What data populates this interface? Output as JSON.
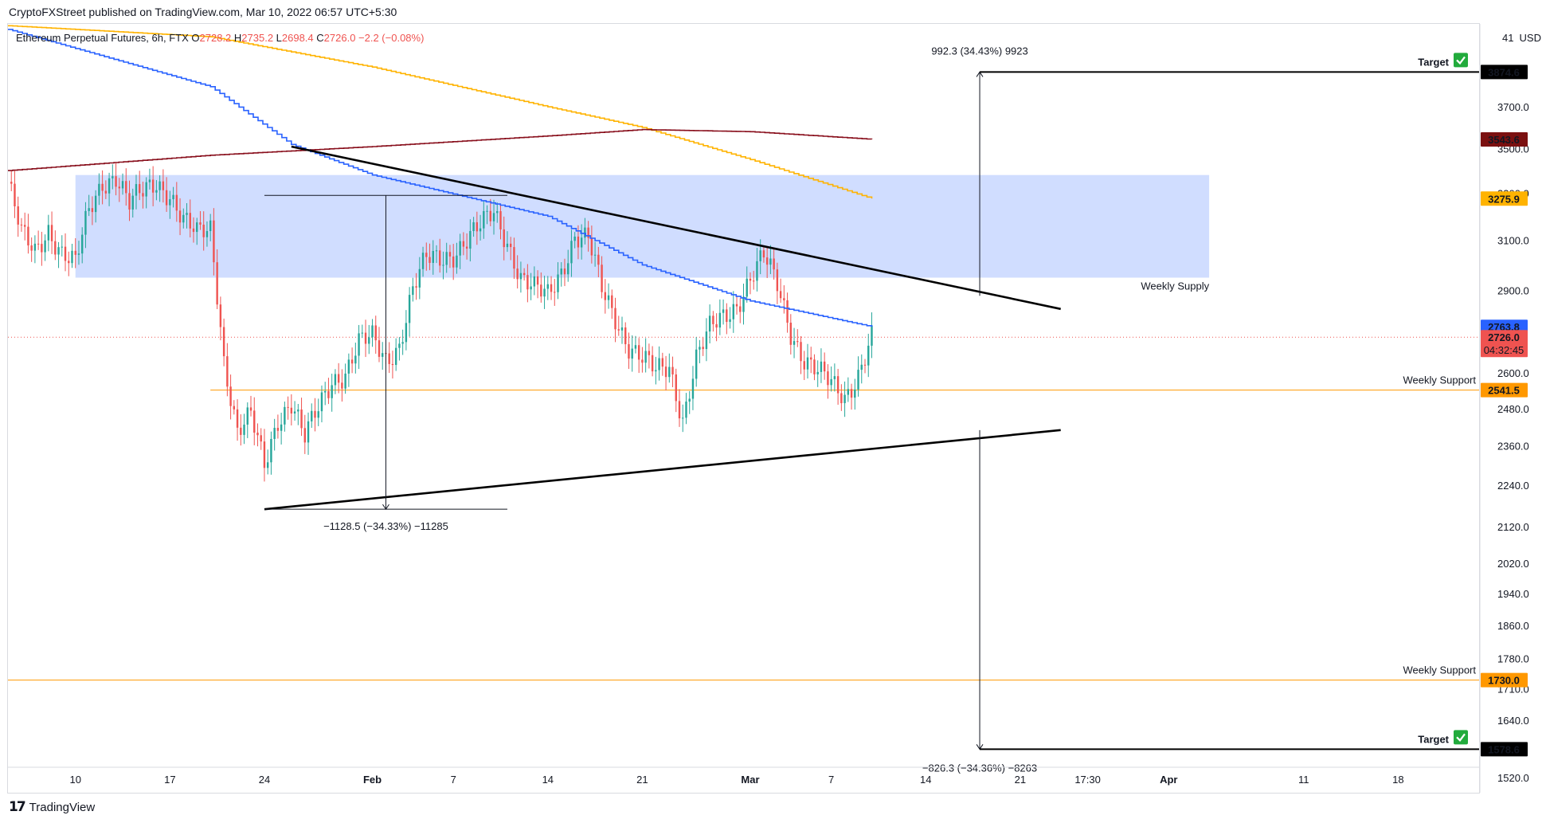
{
  "publisher": "CryptoFXStreet published on TradingView.com, Mar 10, 2022 06:57 UTC+5:30",
  "footer_brand": "TradingView",
  "legend": {
    "symbol": "Ethereum Perpetual Futures, 6h, FTX",
    "o_label": "O",
    "o": "2728.2",
    "h_label": "H",
    "h": "2735.2",
    "l_label": "L",
    "l": "2698.4",
    "c_label": "C",
    "c": "2726.0",
    "change": "−2.2 (−0.08%)"
  },
  "currency": "USD",
  "currency_prefix": "41",
  "colors": {
    "up": "#26a69a",
    "down": "#ef5350",
    "supply_zone": "#2962ff",
    "support": "#ff9800",
    "ma_blue": "#2962ff",
    "ma_yellow": "#ffb300",
    "ma_maroon": "#880e1b",
    "label_maroon": "#7b1010",
    "weekly_supply_text": "#9c27b0",
    "target_check": "#22ab3c"
  },
  "chart_data": {
    "type": "candlestick",
    "symbol": "Ethereum Perpetual Futures, 6h, FTX",
    "y_axis": {
      "scale": "log",
      "ticks": [
        1520.0,
        1640.0,
        1710.0,
        1780.0,
        1860.0,
        1940.0,
        2020.0,
        2120.0,
        2240.0,
        2360.0,
        2480.0,
        2600.0,
        2900.0,
        3100.0,
        3700.0
      ],
      "hidden_ticks_near_labels": [
        3300.0,
        3500.0
      ],
      "range": [
        1490,
        4130
      ]
    },
    "x_axis": {
      "ticks": [
        "10",
        "17",
        "24",
        "Feb",
        "7",
        "14",
        "21",
        "Mar",
        "7",
        "14",
        "21",
        "17:30",
        "Apr",
        "11",
        "18"
      ],
      "bold_ticks": [
        "Feb",
        "Mar",
        "Apr"
      ],
      "tick_dates": [
        "2022-01-10",
        "2022-01-17",
        "2022-01-24",
        "2022-02-01",
        "2022-02-07",
        "2022-02-14",
        "2022-02-21",
        "2022-03-01",
        "2022-03-07",
        "2022-03-14",
        "2022-03-21",
        "2022-03-26",
        "2022-04-01",
        "2022-04-11",
        "2022-04-18"
      ],
      "range": [
        "2022-01-05",
        "2022-04-24"
      ]
    },
    "candle_anchors": [
      [
        "2022-01-05",
        3350
      ],
      [
        "2022-01-06",
        3120
      ],
      [
        "2022-01-07",
        3050
      ],
      [
        "2022-01-08",
        3150
      ],
      [
        "2022-01-09",
        3050
      ],
      [
        "2022-01-10",
        3000
      ],
      [
        "2022-01-11",
        3220
      ],
      [
        "2022-01-12",
        3350
      ],
      [
        "2022-01-13",
        3380
      ],
      [
        "2022-01-14",
        3250
      ],
      [
        "2022-01-15",
        3300
      ],
      [
        "2022-01-16",
        3350
      ],
      [
        "2022-01-17",
        3300
      ],
      [
        "2022-01-18",
        3180
      ],
      [
        "2022-01-19",
        3120
      ],
      [
        "2022-01-20",
        3150
      ],
      [
        "2022-01-21",
        2650
      ],
      [
        "2022-01-22",
        2400
      ],
      [
        "2022-01-23",
        2450
      ],
      [
        "2022-01-24",
        2300
      ],
      [
        "2022-01-25",
        2450
      ],
      [
        "2022-01-26",
        2500
      ],
      [
        "2022-01-27",
        2380
      ],
      [
        "2022-01-28",
        2480
      ],
      [
        "2022-01-29",
        2580
      ],
      [
        "2022-01-30",
        2600
      ],
      [
        "2022-01-31",
        2700
      ],
      [
        "2022-02-01",
        2720
      ],
      [
        "2022-02-02",
        2650
      ],
      [
        "2022-02-03",
        2700
      ],
      [
        "2022-02-04",
        2900
      ],
      [
        "2022-02-05",
        3020
      ],
      [
        "2022-02-06",
        3030
      ],
      [
        "2022-02-07",
        3050
      ],
      [
        "2022-02-08",
        3100
      ],
      [
        "2022-02-09",
        3150
      ],
      [
        "2022-02-10",
        3220
      ],
      [
        "2022-02-11",
        3100
      ],
      [
        "2022-02-12",
        2950
      ],
      [
        "2022-02-13",
        2900
      ],
      [
        "2022-02-14",
        2880
      ],
      [
        "2022-02-15",
        2980
      ],
      [
        "2022-02-16",
        3120
      ],
      [
        "2022-02-17",
        3100
      ],
      [
        "2022-02-18",
        2900
      ],
      [
        "2022-02-19",
        2800
      ],
      [
        "2022-02-20",
        2700
      ],
      [
        "2022-02-21",
        2650
      ],
      [
        "2022-02-22",
        2600
      ],
      [
        "2022-02-23",
        2620
      ],
      [
        "2022-02-24",
        2450
      ],
      [
        "2022-02-25",
        2650
      ],
      [
        "2022-02-26",
        2750
      ],
      [
        "2022-02-27",
        2800
      ],
      [
        "2022-02-28",
        2850
      ],
      [
        "2022-03-01",
        2950
      ],
      [
        "2022-03-02",
        3030
      ],
      [
        "2022-03-03",
        2920
      ],
      [
        "2022-03-04",
        2750
      ],
      [
        "2022-03-05",
        2650
      ],
      [
        "2022-03-06",
        2600
      ],
      [
        "2022-03-07",
        2560
      ],
      [
        "2022-03-08",
        2520
      ],
      [
        "2022-03-09",
        2600
      ],
      [
        "2022-03-10",
        2726
      ]
    ],
    "moving_averages": [
      {
        "color": "ma_blue",
        "points": [
          [
            "2022-01-05",
            4100
          ],
          [
            "2022-01-20",
            3800
          ],
          [
            "2022-01-26",
            3520
          ],
          [
            "2022-02-01",
            3380
          ],
          [
            "2022-02-14",
            3200
          ],
          [
            "2022-02-21",
            3000
          ],
          [
            "2022-03-01",
            2860
          ],
          [
            "2022-03-10",
            2764
          ]
        ],
        "last": "2763.8"
      },
      {
        "color": "ma_yellow",
        "points": [
          [
            "2022-01-05",
            4120
          ],
          [
            "2022-01-20",
            4060
          ],
          [
            "2022-02-01",
            3900
          ],
          [
            "2022-02-14",
            3700
          ],
          [
            "2022-02-21",
            3600
          ],
          [
            "2022-03-01",
            3450
          ],
          [
            "2022-03-10",
            3276
          ]
        ],
        "last": "3275.9"
      },
      {
        "color": "ma_maroon",
        "points": [
          [
            "2022-01-05",
            3400
          ],
          [
            "2022-01-20",
            3470
          ],
          [
            "2022-02-01",
            3510
          ],
          [
            "2022-02-14",
            3560
          ],
          [
            "2022-02-21",
            3590
          ],
          [
            "2022-03-01",
            3580
          ],
          [
            "2022-03-10",
            3544
          ]
        ],
        "last": "3543.6"
      }
    ],
    "supply_zone": {
      "from": "2022-01-10",
      "to": "2022-04-04",
      "low": 2950,
      "high": 3380,
      "label": "Weekly Supply"
    },
    "horizontal_levels": [
      {
        "price": 2541.5,
        "label": "Weekly Support",
        "from": "2022-01-20"
      },
      {
        "price": 1730.0,
        "label": "Weekly Support",
        "from": "2022-01-05"
      }
    ],
    "trendlines": [
      {
        "name": "upper",
        "from": [
          "2022-01-26",
          3510
        ],
        "to": [
          "2022-03-24",
          2830
        ]
      },
      {
        "name": "lower",
        "from": [
          "2022-01-24",
          2170
        ],
        "to": [
          "2022-03-24",
          2410
        ]
      }
    ],
    "measurements": [
      {
        "from_price": 3290,
        "to_price": 2170,
        "date": "2022-02-02",
        "label": "−1128.5 (−34.33%) −11285"
      },
      {
        "from_price": 2880,
        "to_price": 3874.6,
        "date": "2022-03-18",
        "label": "992.3 (34.43%) 9923"
      },
      {
        "from_price": 2410,
        "to_price": 1578.6,
        "date": "2022-03-18",
        "label": "−826.3 (−34.36%) −8263"
      }
    ],
    "targets": [
      {
        "price": 3874.6,
        "label": "Target",
        "from": "2022-03-18"
      },
      {
        "price": 1578.6,
        "label": "Target",
        "from": "2022-03-18"
      }
    ],
    "last_price": {
      "value": "2726.0",
      "countdown": "04:32:45"
    }
  }
}
